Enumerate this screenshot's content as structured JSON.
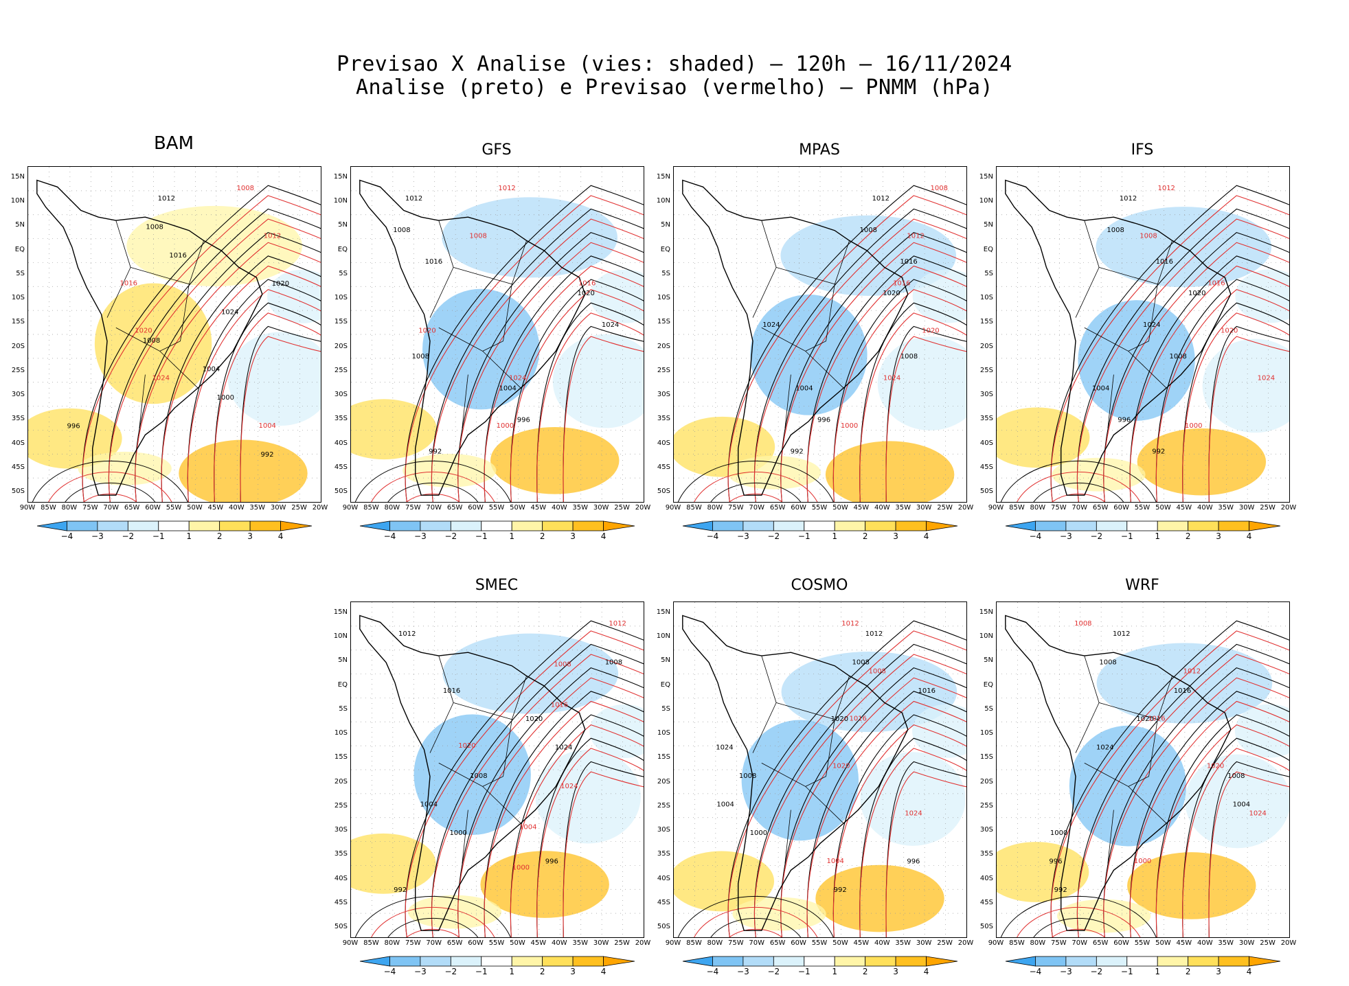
{
  "title": {
    "line1": "Previsao X Analise (vies: shaded) – 120h – 16/11/2024",
    "line2": "Analise (preto) e Previsao (vermelho) – PNMM (hPa)"
  },
  "axes": {
    "lat_labels": [
      "15N",
      "10N",
      "5N",
      "EQ",
      "5S",
      "10S",
      "15S",
      "20S",
      "25S",
      "30S",
      "35S",
      "40S",
      "45S",
      "50S"
    ],
    "lon_labels": [
      "90W",
      "85W",
      "80W",
      "75W",
      "70W",
      "65W",
      "60W",
      "55W",
      "50W",
      "45W",
      "40W",
      "35W",
      "30W",
      "25W",
      "20W"
    ]
  },
  "colorbar": {
    "labels": [
      "−4",
      "−3",
      "−2",
      "−1",
      "1",
      "2",
      "3",
      "4"
    ],
    "colors": [
      "#3da5f0",
      "#7fc4f4",
      "#b2dcf8",
      "#dbf2fb",
      "#ffffff",
      "#fff5a8",
      "#ffe05a",
      "#ffc020",
      "#ffa500"
    ]
  },
  "colors": {
    "analysis_contour": "#000000",
    "forecast_contour": "#e03030",
    "bias_negative": "#7fc4f4",
    "bias_positive": "#ffc020"
  },
  "panels": [
    {
      "id": "bam",
      "name": "BAM",
      "isobar_labels": [
        "1012",
        "1008",
        "1016",
        "1020",
        "1024",
        "1008",
        "1004",
        "1000",
        "996",
        "992"
      ],
      "forecast_labels": [
        "1008",
        "1012",
        "1016",
        "1020",
        "1024",
        "1004"
      ]
    },
    {
      "id": "gfs",
      "name": "GFS",
      "isobar_labels": [
        "1012",
        "1008",
        "1016",
        "1020",
        "1024",
        "1008",
        "1004",
        "996",
        "992"
      ],
      "forecast_labels": [
        "1012",
        "1008",
        "1016",
        "1020",
        "1024",
        "1000"
      ]
    },
    {
      "id": "mpas",
      "name": "MPAS",
      "isobar_labels": [
        "1012",
        "1008",
        "1016",
        "1020",
        "1024",
        "1008",
        "1004",
        "996",
        "992"
      ],
      "forecast_labels": [
        "1008",
        "1012",
        "1016",
        "1020",
        "1024",
        "1000"
      ]
    },
    {
      "id": "ifs",
      "name": "IFS",
      "isobar_labels": [
        "1012",
        "1008",
        "1016",
        "1020",
        "1024",
        "1008",
        "1004",
        "996",
        "992"
      ],
      "forecast_labels": [
        "1012",
        "1008",
        "1016",
        "1020",
        "1024",
        "1000"
      ]
    },
    {
      "id": "smec",
      "name": "SMEC",
      "isobar_labels": [
        "1012",
        "1008",
        "1016",
        "1020",
        "1024",
        "1008",
        "1004",
        "1000",
        "996",
        "992"
      ],
      "forecast_labels": [
        "1012",
        "1008",
        "1016",
        "1020",
        "1024",
        "1004",
        "1000"
      ]
    },
    {
      "id": "cosmo",
      "name": "COSMO",
      "isobar_labels": [
        "1012",
        "1008",
        "1016",
        "1020",
        "1024",
        "1008",
        "1004",
        "1000",
        "996",
        "992"
      ],
      "forecast_labels": [
        "1012",
        "1008",
        "1016",
        "1020",
        "1024",
        "1004"
      ]
    },
    {
      "id": "wrf",
      "name": "WRF",
      "isobar_labels": [
        "1012",
        "1008",
        "1016",
        "1020",
        "1024",
        "1008",
        "1004",
        "1000",
        "996",
        "992"
      ],
      "forecast_labels": [
        "1008",
        "1012",
        "1016",
        "1020",
        "1024",
        "1000"
      ]
    }
  ]
}
